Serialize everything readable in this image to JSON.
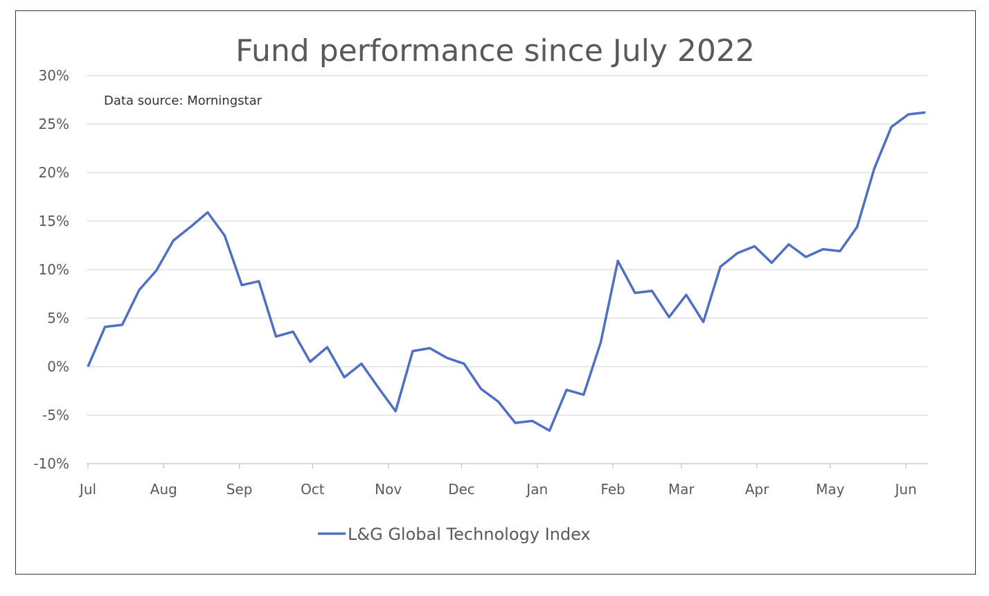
{
  "chart_data": {
    "type": "line",
    "title": "Fund performance since July 2022",
    "annotation": "Data source: Morningstar",
    "ylim": [
      -10,
      30
    ],
    "y_ticks": [
      "30%",
      "25%",
      "20%",
      "15%",
      "10%",
      "5%",
      "0%",
      "-5%",
      "-10%"
    ],
    "y_tick_values": [
      30,
      25,
      20,
      15,
      10,
      5,
      0,
      -5,
      -10
    ],
    "x_tick_labels": [
      "Jul",
      "Aug",
      "Sep",
      "Oct",
      "Nov",
      "Dec",
      "Jan",
      "Feb",
      "Mar",
      "Apr",
      "May",
      "Jun"
    ],
    "x_tick_dates": [
      "2022-07-01",
      "2022-08-01",
      "2022-09-01",
      "2022-10-01",
      "2022-11-01",
      "2022-12-01",
      "2023-01-01",
      "2023-02-01",
      "2023-03-01",
      "2023-04-01",
      "2023-05-01",
      "2023-06-01"
    ],
    "grid": true,
    "legend_position": "bottom",
    "series": [
      {
        "name": "L&G Global Technology Index",
        "color": "#4F6FC4",
        "x": [
          "2022-07-01",
          "2022-07-08",
          "2022-07-15",
          "2022-07-22",
          "2022-07-29",
          "2022-08-05",
          "2022-08-12",
          "2022-08-19",
          "2022-08-26",
          "2022-09-02",
          "2022-09-09",
          "2022-09-16",
          "2022-09-23",
          "2022-09-30",
          "2022-10-07",
          "2022-10-14",
          "2022-10-21",
          "2022-10-28",
          "2022-11-04",
          "2022-11-11",
          "2022-11-18",
          "2022-11-25",
          "2022-12-02",
          "2022-12-09",
          "2022-12-16",
          "2022-12-23",
          "2022-12-30",
          "2023-01-06",
          "2023-01-13",
          "2023-01-20",
          "2023-01-27",
          "2023-02-03",
          "2023-02-10",
          "2023-02-17",
          "2023-02-24",
          "2023-03-03",
          "2023-03-10",
          "2023-03-17",
          "2023-03-24",
          "2023-03-31",
          "2023-04-07",
          "2023-04-14",
          "2023-04-21",
          "2023-04-28",
          "2023-05-05",
          "2023-05-12",
          "2023-05-19",
          "2023-05-26",
          "2023-06-02",
          "2023-06-09"
        ],
        "values": [
          0,
          4.1,
          4.3,
          7.9,
          9.9,
          13.0,
          14.4,
          15.9,
          13.5,
          8.4,
          8.8,
          3.1,
          3.6,
          0.5,
          2.0,
          -1.1,
          0.3,
          -2.2,
          -4.6,
          1.6,
          1.9,
          0.9,
          0.3,
          -2.3,
          -3.6,
          -5.8,
          -5.6,
          -6.6,
          -2.4,
          -2.9,
          2.5,
          10.9,
          7.6,
          7.8,
          5.1,
          7.4,
          4.6,
          10.3,
          11.7,
          12.4,
          10.7,
          12.6,
          11.3,
          12.1,
          11.9,
          14.4,
          20.4,
          24.7,
          26.0,
          26.2
        ]
      }
    ]
  }
}
